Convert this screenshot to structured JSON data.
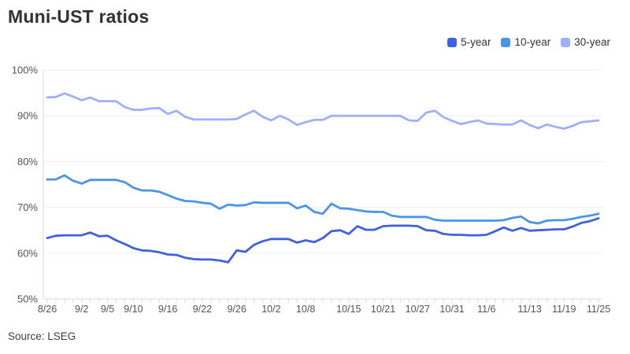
{
  "title": "Muni-UST ratios",
  "source": "Source: LSEG",
  "colors": {
    "background": "#ffffff",
    "title_text": "#2f3237",
    "axis_text": "#505359",
    "gridline": "#edeff3",
    "axis_line": "#d8dbe1",
    "series_5yr": "#4060dd",
    "series_10yr": "#4b94e8",
    "series_30yr": "#a0b0f2"
  },
  "chart_data": {
    "type": "line",
    "title": "Muni-UST ratios",
    "xlabel": "",
    "ylabel": "",
    "ylim": [
      50,
      100
    ],
    "yticks": [
      50,
      60,
      70,
      80,
      90,
      100
    ],
    "ytick_suffix": "%",
    "grid": true,
    "legend_position": "top-right",
    "x_tick_labels": [
      "8/26",
      "9/2",
      "9/5",
      "9/10",
      "9/16",
      "9/22",
      "9/26",
      "10/2",
      "10/8",
      "10/15",
      "10/21",
      "10/27",
      "10/31",
      "11/6",
      "11/13",
      "11/19",
      "11/25"
    ],
    "x_tick_indices": [
      0,
      4,
      7,
      10,
      14,
      18,
      22,
      26,
      30,
      35,
      39,
      43,
      47,
      51,
      56,
      60,
      64
    ],
    "categories": [
      "8/26",
      "8/27",
      "8/28",
      "8/29",
      "9/2",
      "9/3",
      "9/4",
      "9/5",
      "9/8",
      "9/9",
      "9/10",
      "9/11",
      "9/12",
      "9/15",
      "9/16",
      "9/17",
      "9/18",
      "9/19",
      "9/22",
      "9/23",
      "9/24",
      "9/25",
      "9/26",
      "9/29",
      "9/30",
      "10/1",
      "10/2",
      "10/3",
      "10/6",
      "10/7",
      "10/8",
      "10/9",
      "10/10",
      "10/13",
      "10/14",
      "10/15",
      "10/16",
      "10/17",
      "10/20",
      "10/21",
      "10/22",
      "10/23",
      "10/24",
      "10/27",
      "10/28",
      "10/29",
      "10/30",
      "10/31",
      "11/3",
      "11/4",
      "11/5",
      "11/6",
      "11/7",
      "11/10",
      "11/11",
      "11/12",
      "11/13",
      "11/14",
      "11/17",
      "11/18",
      "11/19",
      "11/20",
      "11/21",
      "11/24",
      "11/25"
    ],
    "series": [
      {
        "name": "5-year",
        "color": "#4060dd",
        "values": [
          63.3,
          63.8,
          63.9,
          63.9,
          63.9,
          64.5,
          63.7,
          63.8,
          62.8,
          62.0,
          61.1,
          60.6,
          60.5,
          60.2,
          59.7,
          59.6,
          59.0,
          58.7,
          58.6,
          58.6,
          58.4,
          58.0,
          60.6,
          60.3,
          61.8,
          62.6,
          63.1,
          63.1,
          63.1,
          62.3,
          62.8,
          62.4,
          63.3,
          64.8,
          65.0,
          64.2,
          65.9,
          65.1,
          65.1,
          65.9,
          66.0,
          66.0,
          66.0,
          65.9,
          65.0,
          64.9,
          64.2,
          64.0,
          64.0,
          63.9,
          63.9,
          64.0,
          64.8,
          65.6,
          64.9,
          65.5,
          64.9,
          65.0,
          65.1,
          65.2,
          65.2,
          65.8,
          66.6,
          67.0,
          67.6
        ]
      },
      {
        "name": "10-year",
        "color": "#4b94e8",
        "values": [
          76.1,
          76.1,
          77.0,
          75.8,
          75.2,
          76.0,
          76.0,
          76.0,
          76.0,
          75.5,
          74.3,
          73.7,
          73.7,
          73.4,
          72.7,
          71.9,
          71.4,
          71.3,
          71.0,
          70.8,
          69.7,
          70.6,
          70.4,
          70.5,
          71.1,
          71.0,
          71.0,
          71.0,
          71.0,
          69.8,
          70.4,
          69.0,
          68.6,
          70.8,
          69.8,
          69.7,
          69.4,
          69.1,
          69.0,
          69.0,
          68.2,
          67.9,
          67.9,
          67.9,
          67.9,
          67.3,
          67.1,
          67.1,
          67.1,
          67.1,
          67.1,
          67.1,
          67.1,
          67.2,
          67.7,
          68.0,
          66.8,
          66.5,
          67.1,
          67.2,
          67.2,
          67.5,
          67.9,
          68.2,
          68.6
        ]
      },
      {
        "name": "30-year",
        "color": "#a0b0f2",
        "values": [
          94.0,
          94.1,
          94.9,
          94.2,
          93.4,
          94.0,
          93.2,
          93.2,
          93.2,
          91.9,
          91.3,
          91.3,
          91.6,
          91.7,
          90.4,
          91.1,
          89.8,
          89.2,
          89.2,
          89.2,
          89.2,
          89.2,
          89.3,
          90.3,
          91.1,
          89.8,
          89.0,
          90.0,
          89.2,
          88.0,
          88.6,
          89.1,
          89.1,
          90.0,
          90.0,
          90.0,
          90.0,
          90.0,
          90.0,
          90.0,
          90.0,
          90.0,
          89.0,
          88.9,
          90.7,
          91.1,
          89.7,
          88.9,
          88.2,
          88.6,
          89.0,
          88.3,
          88.2,
          88.1,
          88.1,
          89.0,
          88.0,
          87.3,
          88.1,
          87.6,
          87.2,
          87.8,
          88.6,
          88.8,
          89.0
        ]
      }
    ]
  }
}
